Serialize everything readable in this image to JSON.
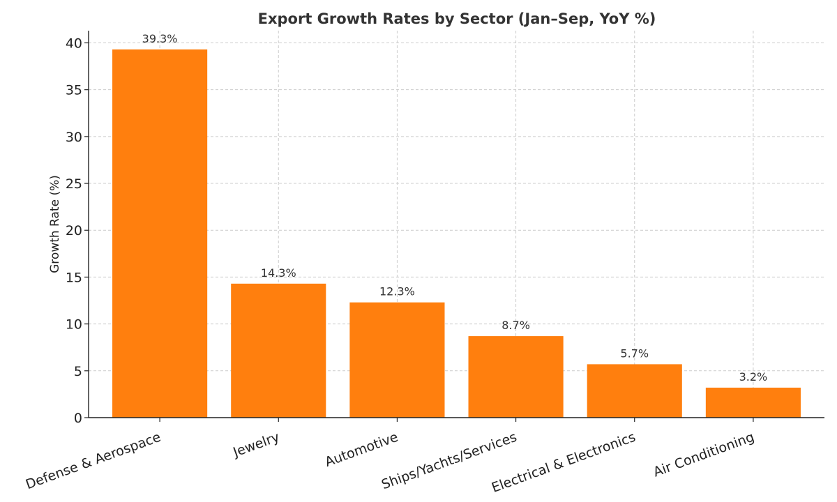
{
  "chart_data": {
    "type": "bar",
    "title": "Export Growth Rates by Sector (Jan–Sep, YoY %)",
    "xlabel": "",
    "ylabel": "Growth Rate (%)",
    "categories": [
      "Defense & Aerospace",
      "Jewelry",
      "Automotive",
      "Ships/Yachts/Services",
      "Electrical & Electronics",
      "Air Conditioning"
    ],
    "values": [
      39.3,
      14.3,
      12.3,
      8.7,
      5.7,
      3.2
    ],
    "data_labels": [
      "39.3%",
      "14.3%",
      "12.3%",
      "8.7%",
      "5.7%",
      "3.2%"
    ],
    "ylim": [
      0,
      41.3
    ],
    "yticks": [
      0,
      5,
      10,
      15,
      20,
      25,
      30,
      35,
      40
    ],
    "grid": true,
    "colors": {
      "bar": "#ff7f0e"
    }
  }
}
